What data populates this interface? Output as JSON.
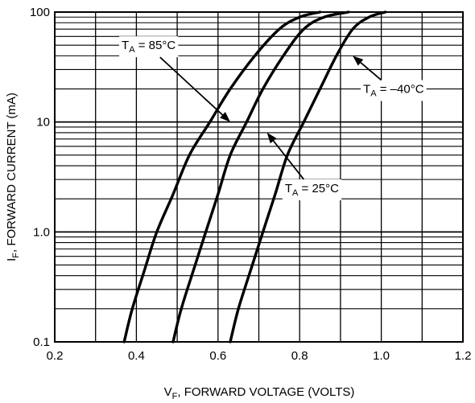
{
  "chart_data": {
    "type": "line",
    "title": "",
    "xlabel": {
      "main": "V",
      "sub": "F",
      "rest": ", FORWARD VOLTAGE (VOLTS)"
    },
    "ylabel": {
      "main": "I",
      "sub": "F",
      "rest": ", FORWARD CURRENT (mA)"
    },
    "x_scale": "linear",
    "y_scale": "log",
    "xlim": [
      0.2,
      1.2
    ],
    "ylim": [
      0.1,
      100
    ],
    "grid": true,
    "x_ticks": [
      0.2,
      0.4,
      0.6,
      0.8,
      1.0,
      1.2
    ],
    "x_tick_labels": [
      "0.2",
      "0.4",
      "0.6",
      "0.8",
      "1.0",
      "1.2"
    ],
    "y_ticks": [
      0.1,
      1.0,
      10,
      100
    ],
    "y_tick_labels": [
      "0.1",
      "1.0",
      "10",
      "100"
    ],
    "series": [
      {
        "x": [
          0.37,
          0.39,
          0.42,
          0.45,
          0.49,
          0.53,
          0.58,
          0.63,
          0.69,
          0.75,
          0.8,
          0.85
        ],
        "y": [
          0.1,
          0.2,
          0.45,
          1.0,
          2.2,
          5.0,
          10,
          20,
          40,
          70,
          90,
          100
        ]
      },
      {
        "x": [
          0.49,
          0.51,
          0.54,
          0.57,
          0.6,
          0.63,
          0.67,
          0.71,
          0.76,
          0.81,
          0.86,
          0.92
        ],
        "y": [
          0.1,
          0.2,
          0.45,
          1.0,
          2.2,
          5.0,
          10,
          20,
          40,
          70,
          90,
          100
        ]
      },
      {
        "x": [
          0.63,
          0.65,
          0.68,
          0.71,
          0.74,
          0.77,
          0.81,
          0.85,
          0.89,
          0.93,
          0.97,
          1.01
        ],
        "y": [
          0.1,
          0.2,
          0.45,
          1.0,
          2.2,
          5.0,
          10,
          20,
          40,
          70,
          90,
          100
        ]
      }
    ],
    "annotations": [
      {
        "main": "T",
        "sub": "A",
        "rest": " = 85°C",
        "target_x": 0.63,
        "target_y": 10,
        "text_x": 0.43,
        "text_y": 50
      },
      {
        "main": "T",
        "sub": "A",
        "rest": " = 25°C",
        "target_x": 0.72,
        "target_y": 8,
        "text_x": 0.83,
        "text_y": 2.5
      },
      {
        "main": "T",
        "sub": "A",
        "rest": " = –40°C",
        "target_x": 0.93,
        "target_y": 40,
        "text_x": 1.03,
        "text_y": 20
      }
    ]
  }
}
